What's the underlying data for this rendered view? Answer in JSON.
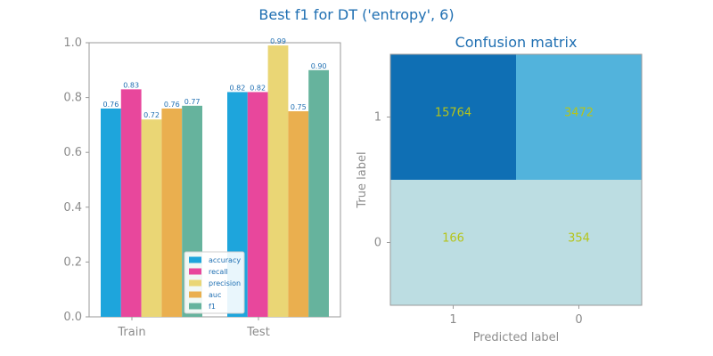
{
  "figure_title": "Best f1 for DT ('entropy', 6)",
  "chart_data": [
    {
      "type": "bar",
      "title": "",
      "xlabel": "",
      "ylabel": "",
      "categories": [
        "Train",
        "Test"
      ],
      "ylim": [
        0.0,
        1.0
      ],
      "yticks": [
        "0.0",
        "0.2",
        "0.4",
        "0.6",
        "0.8",
        "1.0"
      ],
      "legend_position": "lower-right",
      "series": [
        {
          "name": "accuracy",
          "color": "#1ea5dc",
          "values": [
            0.76,
            0.82
          ],
          "labels": [
            "0.76",
            "0.82"
          ]
        },
        {
          "name": "recall",
          "color": "#e8479c",
          "values": [
            0.83,
            0.82
          ],
          "labels": [
            "0.83",
            "0.82"
          ]
        },
        {
          "name": "precision",
          "color": "#ead675",
          "values": [
            0.72,
            0.99
          ],
          "labels": [
            "0.72",
            "0.99"
          ]
        },
        {
          "name": "auc",
          "color": "#eaaf4f",
          "values": [
            0.76,
            0.75
          ],
          "labels": [
            "0.76",
            "0.75"
          ]
        },
        {
          "name": "f1",
          "color": "#66b39d",
          "values": [
            0.77,
            0.9
          ],
          "labels": [
            "0.77",
            "0.90"
          ]
        }
      ]
    },
    {
      "type": "heatmap",
      "title": "Confusion matrix",
      "xlabel": "Predicted label",
      "ylabel": "True label",
      "x_ticks": [
        "1",
        "0"
      ],
      "y_ticks": [
        "1",
        "0"
      ],
      "values": [
        [
          15764,
          3472
        ],
        [
          166,
          354
        ]
      ],
      "cell_colors": [
        [
          "#0f6fb4",
          "#52b3dc"
        ],
        [
          "#bcdde2",
          "#bcdde2"
        ]
      ]
    }
  ]
}
